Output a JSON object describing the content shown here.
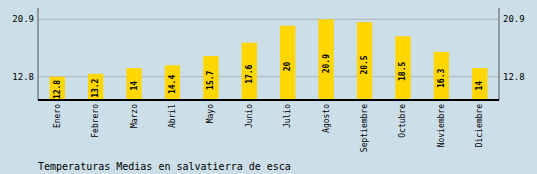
{
  "chart_data": {
    "type": "bar",
    "title": "Temperaturas Medias en salvatierra de esca",
    "categories": [
      "Enero",
      "Febrero",
      "Marzo",
      "Abril",
      "Mayo",
      "Junio",
      "Julio",
      "Agosto",
      "Septiembre",
      "Octubre",
      "Noviembre",
      "Diciembre"
    ],
    "values": [
      12.8,
      13.2,
      14.0,
      14.4,
      15.7,
      17.6,
      20.0,
      20.9,
      20.5,
      18.5,
      16.3,
      14.0
    ],
    "color": "#FFD700",
    "ylim": [
      9.5,
      22.5
    ],
    "yticks": [
      12.8,
      20.9
    ],
    "y2lim": [
      9.5,
      22.5
    ],
    "y2ticks": [
      12.8,
      20.9
    ],
    "grid": true,
    "data_labels": true
  }
}
